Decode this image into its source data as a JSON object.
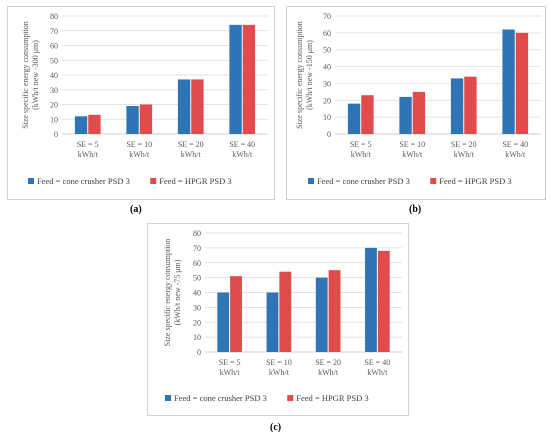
{
  "colors": {
    "cone": "#2e75b6",
    "hpgr": "#e04b4b",
    "grid": "#d9d9d9",
    "axis": "#bfbfbf"
  },
  "chart_data": [
    {
      "type": "bar",
      "panel_label": "(a)",
      "ylabel_lines": [
        "Size specific energy consumption",
        "(kWh/t new -300 μm)"
      ],
      "ylim": [
        0,
        80
      ],
      "yticks": [
        0,
        10,
        20,
        30,
        40,
        50,
        60,
        70,
        80
      ],
      "grid": true,
      "legend_position": "bottom",
      "categories": [
        [
          "SE = 5",
          "kWh/t"
        ],
        [
          "SE = 10",
          "kWh/t"
        ],
        [
          "SE = 20",
          "kWh/t"
        ],
        [
          "SE = 40",
          "kWh/t"
        ]
      ],
      "series": [
        {
          "name": "Feed = cone crusher PSD 3",
          "values": [
            12,
            19,
            37,
            74
          ]
        },
        {
          "name": "Feed = HPGR PSD 3",
          "values": [
            13,
            20,
            37,
            74
          ]
        }
      ]
    },
    {
      "type": "bar",
      "panel_label": "(b)",
      "ylabel_lines": [
        "Size specific energy consumption",
        "(kWh/t new -150 μm)"
      ],
      "ylim": [
        0,
        70
      ],
      "yticks": [
        0,
        10,
        20,
        30,
        40,
        50,
        60,
        70
      ],
      "grid": true,
      "legend_position": "bottom",
      "categories": [
        [
          "SE = 5",
          "kWh/t"
        ],
        [
          "SE = 10",
          "kWh/t"
        ],
        [
          "SE = 20",
          "kWh/t"
        ],
        [
          "SE = 40",
          "kWh/t"
        ]
      ],
      "series": [
        {
          "name": "Feed = cone crusher PSD 3",
          "values": [
            18,
            22,
            33,
            62
          ]
        },
        {
          "name": "Feed = HPGR PSD 3",
          "values": [
            23,
            25,
            34,
            60
          ]
        }
      ]
    },
    {
      "type": "bar",
      "panel_label": "(c)",
      "ylabel_lines": [
        "Size specific energy consumption",
        "(kWh/t new -75 μm)"
      ],
      "ylim": [
        0,
        80
      ],
      "yticks": [
        0,
        10,
        20,
        30,
        40,
        50,
        60,
        70,
        80
      ],
      "grid": true,
      "legend_position": "bottom",
      "categories": [
        [
          "SE = 5",
          "kWh/t"
        ],
        [
          "SE = 10",
          "kWh/t"
        ],
        [
          "SE = 20",
          "kWh/t"
        ],
        [
          "SE = 40",
          "kWh/t"
        ]
      ],
      "series": [
        {
          "name": "Feed = cone crusher PSD 3",
          "values": [
            40,
            40,
            50,
            70
          ]
        },
        {
          "name": "Feed = HPGR PSD 3",
          "values": [
            51,
            54,
            55,
            68
          ]
        }
      ]
    }
  ]
}
